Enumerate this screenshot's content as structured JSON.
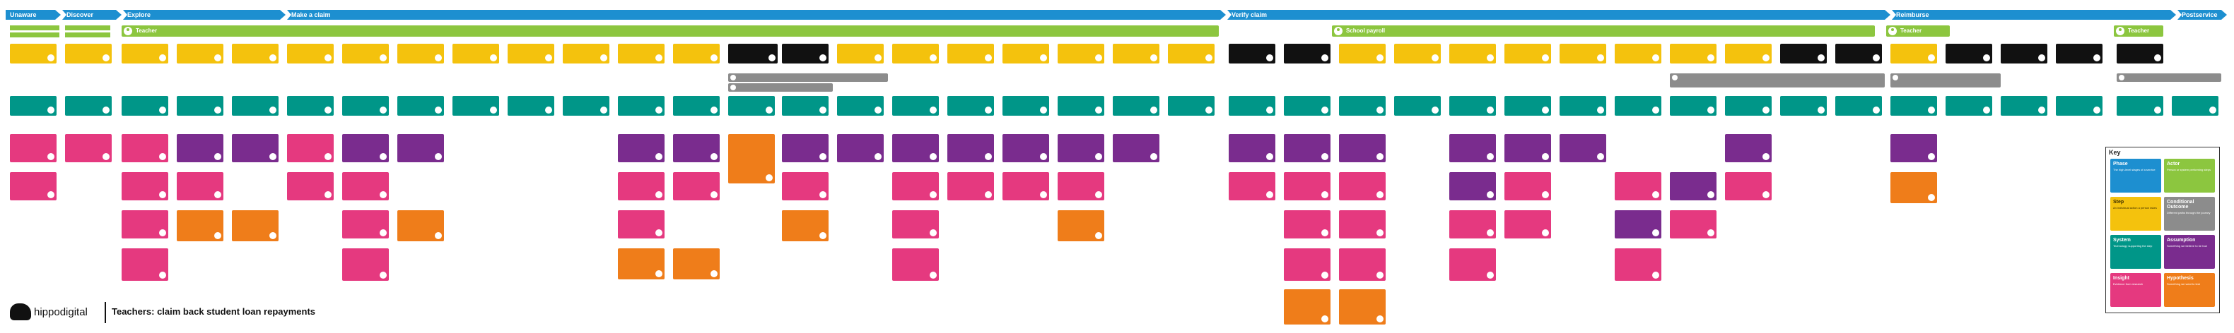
{
  "phases": [
    {
      "label": "Unaware"
    },
    {
      "label": "Discover"
    },
    {
      "label": "Explore"
    },
    {
      "label": "Make a claim"
    },
    {
      "label": "Verify claim"
    },
    {
      "label": "Reimburse"
    },
    {
      "label": "Postservice"
    }
  ],
  "actors": [
    {
      "label": "Teacher"
    },
    {
      "label": "School payroll"
    },
    {
      "label": "Teacher"
    },
    {
      "label": "Teacher"
    }
  ],
  "brand": {
    "name": "hippodigital"
  },
  "map_title": "Teachers: claim back student loan repayments",
  "key": {
    "title": "Key",
    "items": [
      {
        "label": "Phase",
        "desc": "The high-level stages of a service"
      },
      {
        "label": "Actor",
        "desc": "Person or system performing steps"
      },
      {
        "label": "Step",
        "desc": "An individual action a person takes"
      },
      {
        "label": "Conditional Outcome",
        "desc": "Different paths through the journey"
      },
      {
        "label": "System",
        "desc": "Technology supporting the step"
      },
      {
        "label": "Assumption",
        "desc": "Something we believe to be true"
      },
      {
        "label": "Insight",
        "desc": "Evidence from research"
      },
      {
        "label": "Hypothesis",
        "desc": "Something we want to test"
      }
    ]
  },
  "colors": {
    "phase": "#1d8fd0",
    "actor": "#8cc63f",
    "step": "#f4c20d",
    "system": "#009688",
    "insight": "#e5397f",
    "assumption": "#7a2c8e",
    "hypothesis": "#ef7d1a",
    "conditional": "#8c8c8c"
  }
}
